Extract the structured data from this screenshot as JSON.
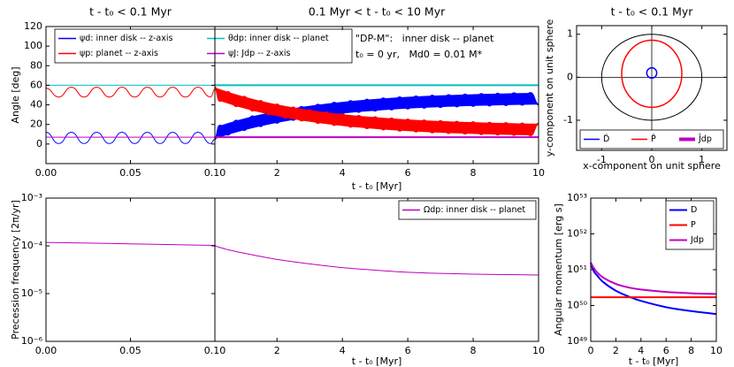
{
  "chart_data": [
    {
      "type": "line",
      "title": "t - t₀ < 0.1 Myr",
      "ylabel": "Angle [deg]",
      "xlim": [
        0,
        0.1
      ],
      "xticks": [
        {
          "value": 0,
          "label": "0.00"
        },
        {
          "value": 0.05,
          "label": "0.05"
        },
        {
          "value": 0.1,
          "label": "0.10"
        }
      ],
      "ylim": [
        -20,
        120
      ],
      "yticks": [
        0,
        20,
        40,
        60,
        80,
        100,
        120
      ],
      "legend": "upper left",
      "x": [
        0,
        0.0075,
        0.015,
        0.0225,
        0.03,
        0.0375,
        0.045,
        0.0525,
        0.06,
        0.0675,
        0.075,
        0.0825,
        0.09,
        0.0975,
        0.1
      ],
      "series": [
        {
          "name": "ψd: inner disk -- z-axis",
          "color": "#0000ff",
          "values": [
            12,
            0.5,
            12,
            0.5,
            12,
            0.5,
            12,
            0.5,
            12,
            0.5,
            12,
            0.5,
            12,
            0.5,
            5
          ]
        },
        {
          "name": "ψp: planet -- z-axis",
          "color": "#ff0000",
          "values": [
            57,
            48,
            58,
            48,
            58,
            48,
            58,
            48,
            58,
            48,
            58,
            48,
            58,
            48,
            56
          ]
        },
        {
          "name": "θdp: inner disk -- planet",
          "color": "#00bfbf",
          "x": [
            0,
            0.1
          ],
          "values": [
            60,
            60
          ]
        },
        {
          "name": "ψJ: Jdp -- z-axis",
          "color": "#bf00bf",
          "x": [
            0,
            0.1
          ],
          "values": [
            7,
            7
          ]
        }
      ]
    },
    {
      "type": "line",
      "title": "0.1 Myr < t - t₀ < 10 Myr",
      "xlabel": "t - t₀ [Myr]",
      "annotations": [
        "\"DP-M\":   inner disk -- planet",
        "t₀ = 0 yr,   Md0 = 0.01 M*"
      ],
      "xlim": [
        0.1,
        10
      ],
      "xticks": [
        2,
        4,
        6,
        8,
        10
      ],
      "ylim": [
        -20,
        120
      ],
      "x": [
        0.1,
        0.25,
        0.5,
        0.75,
        1,
        1.25,
        1.5,
        1.75,
        2,
        2.25,
        2.5,
        2.75,
        3,
        3.25,
        3.5,
        3.75,
        4,
        4.25,
        4.5,
        4.75,
        5,
        5.25,
        5.5,
        5.75,
        6,
        6.25,
        6.5,
        6.75,
        7,
        7.25,
        7.5,
        7.75,
        8,
        8.25,
        8.5,
        8.75,
        9,
        9.25,
        9.5,
        9.75,
        10
      ],
      "series": [
        {
          "color": "#0000ff",
          "values": [
            5.2,
            18.8,
            9.5,
            23.9,
            14.2,
            28.3,
            18.2,
            32.0,
            21.7,
            35.2,
            24.6,
            37.9,
            27.1,
            40.2,
            29.3,
            42.2,
            31.1,
            43.9,
            32.7,
            45.4,
            34.0,
            46.6,
            35.2,
            47.7,
            36.2,
            48.6,
            37.0,
            49.4,
            37.7,
            50.0,
            38.4,
            50.6,
            38.9,
            51.1,
            39.3,
            51.5,
            39.7,
            51.9,
            40.1,
            52.2,
            40.3
          ]
        },
        {
          "color": "#ff0000",
          "values": [
            57.8,
            44,
            53.2,
            38.6,
            48.3,
            34.1,
            44.0,
            30.2,
            40.4,
            26.8,
            37.3,
            23.9,
            34.7,
            21.5,
            32.4,
            19.4,
            30.5,
            17.6,
            28.8,
            16.1,
            27.4,
            14.8,
            26.2,
            13.6,
            25.1,
            12.7,
            24.2,
            11.8,
            23.5,
            11.2,
            22.8,
            10.6,
            22.3,
            10.0,
            21.8,
            9.6,
            21.4,
            9.2,
            21.0,
            8.9,
            20.8
          ]
        },
        {
          "color": "#00bfbf",
          "x": [
            0.1,
            10
          ],
          "values": [
            60,
            60
          ]
        },
        {
          "color": "#bf00bf",
          "x": [
            0.1,
            10
          ],
          "values": [
            7,
            7
          ]
        }
      ]
    },
    {
      "type": "ellipse",
      "title": "t - t₀ < 0.1 Myr",
      "xlabel": "x-component on unit sphere",
      "ylabel": "y-component on unit sphere",
      "xlim": [
        -1.5,
        1.5
      ],
      "xticks": [
        -1,
        0,
        1
      ],
      "ylim": [
        -1.7,
        1.2
      ],
      "yticks": [
        -1,
        0,
        1
      ],
      "legend": "lower center",
      "series": [
        {
          "color": "#000000",
          "cx": 0,
          "cy": 0,
          "rx": 1,
          "ry": 1
        },
        {
          "name": "D̂",
          "color": "#0000ff",
          "cx": 0,
          "cy": 0.1,
          "rx": 0.1,
          "ry": 0.12
        },
        {
          "name": "P̂",
          "color": "#ff0000",
          "cx": 0,
          "cy": 0.08,
          "rx": 0.6,
          "ry": 0.78
        },
        {
          "name": "Ĵdp",
          "color": "#bf00bf"
        }
      ]
    },
    {
      "type": "line",
      "ylabel": "Precession frequency [2π/yr]",
      "yscale": "log",
      "xlim": [
        0,
        0.1
      ],
      "xticks": [
        {
          "value": 0,
          "label": "0.00"
        },
        {
          "value": 0.05,
          "label": "0.05"
        },
        {
          "value": 0.1,
          "label": "0.10"
        }
      ],
      "ylim": [
        1e-06,
        0.001
      ],
      "yticks": [
        {
          "value": 1e-06,
          "label": "10⁻⁶"
        },
        {
          "value": 1e-05,
          "label": "10⁻⁵"
        },
        {
          "value": 0.0001,
          "label": "10⁻⁴"
        },
        {
          "value": 0.001,
          "label": "10⁻³"
        }
      ],
      "x": [
        0,
        0.025,
        0.05,
        0.075,
        0.1
      ],
      "series": [
        {
          "color": "#bf00bf",
          "values": [
            0.000118,
            0.000114,
            0.00011,
            0.000106,
            0.000102
          ]
        }
      ]
    },
    {
      "type": "line",
      "xlabel": "t - t₀ [Myr]",
      "yscale": "log",
      "legend": "upper right",
      "xlim": [
        0.1,
        10
      ],
      "xticks": [
        2,
        4,
        6,
        8,
        10
      ],
      "ylim": [
        1e-06,
        0.001
      ],
      "x": [
        0.1,
        0.5,
        1,
        1.5,
        2,
        3,
        4,
        5,
        6,
        7,
        8,
        9,
        10
      ],
      "series": [
        {
          "name": "Ωdp: inner disk -- planet",
          "color": "#bf00bf",
          "values": [
            0.0001,
            8.3e-05,
            7e-05,
            6e-05,
            5.2e-05,
            4.2e-05,
            3.5e-05,
            3.1e-05,
            2.8e-05,
            2.65e-05,
            2.55e-05,
            2.5e-05,
            2.45e-05
          ]
        }
      ]
    },
    {
      "type": "line",
      "xlabel": "t - t₀ [Myr]",
      "ylabel": "Angular momentum [erg s]",
      "yscale": "log",
      "legend": "upper right",
      "xlim": [
        0,
        10
      ],
      "xticks": [
        0,
        2,
        4,
        6,
        8,
        10
      ],
      "ylim": [
        1e+49,
        1e+53
      ],
      "yticks": [
        {
          "value": 1e+49,
          "label": "10⁴⁹"
        },
        {
          "value": 1e+50,
          "label": "10⁵⁰"
        },
        {
          "value": 1e+51,
          "label": "10⁵¹"
        },
        {
          "value": 1e+52,
          "label": "10⁵²"
        },
        {
          "value": 1e+53,
          "label": "10⁵³"
        }
      ],
      "x": [
        0,
        0.25,
        0.5,
        1,
        2,
        3,
        4,
        6,
        8,
        10
      ],
      "series": [
        {
          "name": "D",
          "color": "#0000ff",
          "values": [
            1.5e+51,
            9e+50,
            7e+50,
            4.5e+50,
            2.6e+50,
            1.8e+50,
            1.35e+50,
            9e+49,
            7e+49,
            5.8e+49
          ]
        },
        {
          "name": "P",
          "color": "#ff0000",
          "values": [
            1.7e+50,
            1.7e+50,
            1.7e+50,
            1.7e+50,
            1.7e+50,
            1.7e+50,
            1.7e+50,
            1.7e+50,
            1.7e+50,
            1.7e+50
          ]
        },
        {
          "name": "Jdp",
          "color": "#bf00bf",
          "values": [
            1.6e+51,
            1.1e+51,
            8.5e+50,
            6e+50,
            4e+50,
            3.2e+50,
            2.8e+50,
            2.4e+50,
            2.2e+50,
            2.1e+50
          ]
        }
      ]
    }
  ]
}
